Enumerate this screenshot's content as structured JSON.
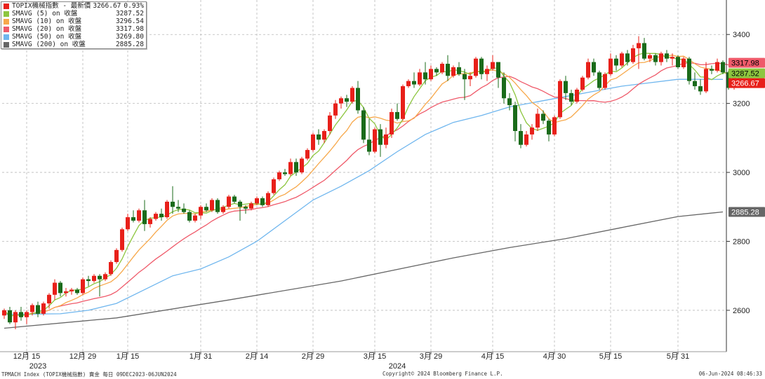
{
  "legend": [
    {
      "name": "TOPIX機械指數 - 最新價",
      "value": "3266.67",
      "change": "0.93%",
      "color": "#e8201a"
    },
    {
      "name": "SMAVG (5)  on 收盤",
      "value": "3287.52",
      "color": "#8dc63f"
    },
    {
      "name": "SMAVG (10)  on 收盤",
      "value": "3296.54",
      "color": "#f7a84a"
    },
    {
      "name": "SMAVG (20)  on 收盤",
      "value": "3317.98",
      "color": "#ef5a6a"
    },
    {
      "name": "SMAVG (50)  on 收盤",
      "value": "3269.80",
      "color": "#6fb6ee"
    },
    {
      "name": "SMAVG (200)  on 收盤",
      "value": "2885.28",
      "color": "#666666"
    }
  ],
  "footer": {
    "left": "TPMACH Index (TOPIX機械指數) 賣金  每日 09DEC2023-06JUN2024",
    "center": "Copyright© 2024 Bloomberg Finance L.P.",
    "right": "06-Jun-2024 08:46:33"
  },
  "chart_data": {
    "type": "candlestick",
    "y_axis": {
      "side": "right",
      "ticks": [
        2600,
        2800,
        3000,
        3200,
        3400
      ],
      "range": [
        2480,
        3500
      ]
    },
    "x_axis": {
      "ticks": [
        {
          "label": "12月 15",
          "index": 4
        },
        {
          "label": "12月 29",
          "index": 14
        },
        {
          "label": "1月 15",
          "index": 22
        },
        {
          "label": "1月 31",
          "index": 35
        },
        {
          "label": "2月 14",
          "index": 45
        },
        {
          "label": "2月 29",
          "index": 55
        },
        {
          "label": "3月 15",
          "index": 66
        },
        {
          "label": "3月 29",
          "index": 76
        },
        {
          "label": "4月 15",
          "index": 87
        },
        {
          "label": "4月 30",
          "index": 98
        },
        {
          "label": "5月 15",
          "index": 108
        },
        {
          "label": "5月 31",
          "index": 120
        }
      ],
      "year_labels": [
        {
          "label": "2023",
          "index": 6
        },
        {
          "label": "2024",
          "index": 70
        }
      ]
    },
    "grid": true,
    "colors": {
      "up": "#e8201a",
      "down": "#1a6b1a"
    },
    "candles": [
      [
        2585,
        2605,
        2575,
        2600
      ],
      [
        2600,
        2610,
        2560,
        2565
      ],
      [
        2565,
        2600,
        2545,
        2595
      ],
      [
        2595,
        2610,
        2570,
        2580
      ],
      [
        2580,
        2600,
        2560,
        2595
      ],
      [
        2595,
        2620,
        2585,
        2615
      ],
      [
        2615,
        2625,
        2580,
        2590
      ],
      [
        2590,
        2625,
        2585,
        2620
      ],
      [
        2620,
        2650,
        2605,
        2645
      ],
      [
        2645,
        2690,
        2630,
        2680
      ],
      [
        2680,
        2685,
        2640,
        2650
      ],
      [
        2650,
        2665,
        2640,
        2655
      ],
      [
        2655,
        2665,
        2645,
        2660
      ],
      [
        2660,
        2665,
        2645,
        2650
      ],
      [
        2650,
        2695,
        2645,
        2690
      ],
      [
        2690,
        2700,
        2670,
        2685
      ],
      [
        2685,
        2705,
        2680,
        2700
      ],
      [
        2700,
        2705,
        2640,
        2690
      ],
      [
        2690,
        2710,
        2685,
        2705
      ],
      [
        2705,
        2745,
        2700,
        2740
      ],
      [
        2740,
        2780,
        2735,
        2775
      ],
      [
        2775,
        2840,
        2770,
        2835
      ],
      [
        2835,
        2880,
        2830,
        2870
      ],
      [
        2870,
        2890,
        2855,
        2860
      ],
      [
        2860,
        2895,
        2855,
        2890
      ],
      [
        2890,
        2920,
        2830,
        2850
      ],
      [
        2850,
        2870,
        2840,
        2865
      ],
      [
        2865,
        2885,
        2860,
        2880
      ],
      [
        2880,
        2895,
        2860,
        2870
      ],
      [
        2870,
        2920,
        2865,
        2915
      ],
      [
        2915,
        2960,
        2880,
        2900
      ],
      [
        2900,
        2920,
        2885,
        2895
      ],
      [
        2895,
        2910,
        2880,
        2885
      ],
      [
        2885,
        2890,
        2855,
        2860
      ],
      [
        2860,
        2880,
        2855,
        2875
      ],
      [
        2875,
        2905,
        2865,
        2900
      ],
      [
        2900,
        2910,
        2885,
        2890
      ],
      [
        2890,
        2925,
        2885,
        2920
      ],
      [
        2920,
        2925,
        2880,
        2885
      ],
      [
        2885,
        2905,
        2880,
        2900
      ],
      [
        2900,
        2935,
        2895,
        2930
      ],
      [
        2930,
        2935,
        2910,
        2915
      ],
      [
        2915,
        2920,
        2860,
        2900
      ],
      [
        2900,
        2905,
        2880,
        2895
      ],
      [
        2895,
        2915,
        2890,
        2910
      ],
      [
        2910,
        2930,
        2905,
        2925
      ],
      [
        2925,
        2930,
        2900,
        2905
      ],
      [
        2905,
        2945,
        2900,
        2940
      ],
      [
        2940,
        2985,
        2935,
        2980
      ],
      [
        2980,
        3005,
        2975,
        3000
      ],
      [
        3000,
        3010,
        2990,
        2995
      ],
      [
        2995,
        3040,
        2990,
        3030
      ],
      [
        3030,
        3040,
        2990,
        3000
      ],
      [
        3000,
        3045,
        2995,
        3040
      ],
      [
        3040,
        3070,
        3035,
        3065
      ],
      [
        3065,
        3115,
        3060,
        3110
      ],
      [
        3110,
        3125,
        3080,
        3095
      ],
      [
        3095,
        3125,
        3085,
        3120
      ],
      [
        3120,
        3175,
        3110,
        3165
      ],
      [
        3165,
        3210,
        3155,
        3200
      ],
      [
        3200,
        3220,
        3185,
        3215
      ],
      [
        3215,
        3225,
        3190,
        3205
      ],
      [
        3205,
        3250,
        3200,
        3245
      ],
      [
        3245,
        3265,
        3170,
        3180
      ],
      [
        3180,
        3190,
        3085,
        3095
      ],
      [
        3095,
        3155,
        3050,
        3060
      ],
      [
        3060,
        3130,
        3055,
        3125
      ],
      [
        3125,
        3140,
        3045,
        3080
      ],
      [
        3080,
        3130,
        3070,
        3110
      ],
      [
        3110,
        3185,
        3100,
        3175
      ],
      [
        3175,
        3200,
        3150,
        3155
      ],
      [
        3155,
        3255,
        3150,
        3250
      ],
      [
        3250,
        3270,
        3245,
        3265
      ],
      [
        3265,
        3290,
        3245,
        3255
      ],
      [
        3255,
        3300,
        3250,
        3290
      ],
      [
        3290,
        3320,
        3255,
        3270
      ],
      [
        3270,
        3310,
        3265,
        3300
      ],
      [
        3300,
        3305,
        3280,
        3290
      ],
      [
        3290,
        3320,
        3285,
        3315
      ],
      [
        3315,
        3340,
        3265,
        3280
      ],
      [
        3280,
        3310,
        3275,
        3305
      ],
      [
        3305,
        3320,
        3280,
        3285
      ],
      [
        3285,
        3300,
        3210,
        3270
      ],
      [
        3270,
        3290,
        3250,
        3280
      ],
      [
        3280,
        3335,
        3275,
        3330
      ],
      [
        3330,
        3335,
        3270,
        3285
      ],
      [
        3285,
        3310,
        3265,
        3300
      ],
      [
        3300,
        3340,
        3295,
        3320
      ],
      [
        3320,
        3315,
        3245,
        3275
      ],
      [
        3275,
        3290,
        3200,
        3215
      ],
      [
        3215,
        3230,
        3180,
        3195
      ],
      [
        3195,
        3205,
        3090,
        3120
      ],
      [
        3120,
        3140,
        3070,
        3080
      ],
      [
        3080,
        3120,
        3075,
        3110
      ],
      [
        3110,
        3140,
        3095,
        3130
      ],
      [
        3130,
        3185,
        3120,
        3170
      ],
      [
        3170,
        3180,
        3140,
        3150
      ],
      [
        3150,
        3155,
        3090,
        3110
      ],
      [
        3110,
        3165,
        3105,
        3160
      ],
      [
        3160,
        3270,
        3155,
        3265
      ],
      [
        3265,
        3280,
        3210,
        3230
      ],
      [
        3230,
        3240,
        3195,
        3205
      ],
      [
        3205,
        3245,
        3200,
        3240
      ],
      [
        3240,
        3280,
        3235,
        3275
      ],
      [
        3275,
        3330,
        3270,
        3320
      ],
      [
        3320,
        3330,
        3280,
        3290
      ],
      [
        3290,
        3295,
        3240,
        3245
      ],
      [
        3245,
        3290,
        3240,
        3285
      ],
      [
        3285,
        3345,
        3280,
        3330
      ],
      [
        3330,
        3340,
        3295,
        3310
      ],
      [
        3310,
        3350,
        3305,
        3345
      ],
      [
        3345,
        3355,
        3310,
        3320
      ],
      [
        3320,
        3370,
        3315,
        3360
      ],
      [
        3360,
        3395,
        3300,
        3375
      ],
      [
        3375,
        3390,
        3325,
        3330
      ],
      [
        3330,
        3345,
        3320,
        3340
      ],
      [
        3340,
        3345,
        3310,
        3320
      ],
      [
        3320,
        3350,
        3310,
        3345
      ],
      [
        3345,
        3355,
        3320,
        3330
      ],
      [
        3330,
        3345,
        3310,
        3335
      ],
      [
        3335,
        3340,
        3300,
        3305
      ],
      [
        3305,
        3335,
        3300,
        3330
      ],
      [
        3330,
        3335,
        3255,
        3265
      ],
      [
        3265,
        3290,
        3240,
        3250
      ],
      [
        3250,
        3270,
        3225,
        3235
      ],
      [
        3235,
        3320,
        3230,
        3300
      ],
      [
        3300,
        3310,
        3285,
        3295
      ],
      [
        3295,
        3330,
        3290,
        3320
      ],
      [
        3320,
        3325,
        3285,
        3290
      ],
      [
        3290,
        3295,
        3240,
        3245
      ],
      [
        3245,
        3285,
        3240,
        3280
      ],
      [
        3280,
        3285,
        3255,
        3267
      ]
    ],
    "ma_series": [
      {
        "name": "SMAVG (200)",
        "color": "#666666",
        "values": [
          [
            0,
            2548
          ],
          [
            20,
            2578
          ],
          [
            40,
            2630
          ],
          [
            60,
            2685
          ],
          [
            80,
            2752
          ],
          [
            90,
            2782
          ],
          [
            100,
            2808
          ],
          [
            110,
            2840
          ],
          [
            120,
            2872
          ],
          [
            128,
            2885.28
          ]
        ]
      },
      {
        "name": "SMAVG (50)",
        "color": "#6fb6ee",
        "values": [
          [
            0,
            2588
          ],
          [
            10,
            2590
          ],
          [
            15,
            2600
          ],
          [
            20,
            2620
          ],
          [
            25,
            2660
          ],
          [
            30,
            2700
          ],
          [
            35,
            2720
          ],
          [
            40,
            2755
          ],
          [
            45,
            2800
          ],
          [
            50,
            2860
          ],
          [
            55,
            2920
          ],
          [
            60,
            2960
          ],
          [
            65,
            3005
          ],
          [
            70,
            3060
          ],
          [
            75,
            3110
          ],
          [
            80,
            3145
          ],
          [
            85,
            3165
          ],
          [
            90,
            3190
          ],
          [
            95,
            3205
          ],
          [
            100,
            3220
          ],
          [
            105,
            3235
          ],
          [
            110,
            3250
          ],
          [
            115,
            3260
          ],
          [
            120,
            3270
          ],
          [
            128,
            3269.8
          ]
        ]
      }
    ],
    "price_labels": [
      {
        "value": "3317.98",
        "price": 3317.98,
        "bg": "#ef5a6a",
        "fg": "#000000"
      },
      {
        "value": "3287.52",
        "price": 3287.52,
        "bg": "#8dc63f",
        "fg": "#000000"
      },
      {
        "value": "3266.67",
        "price": 3266.67,
        "bg": "#e8201a",
        "fg": "#ffffff"
      },
      {
        "value": "2885.28",
        "price": 2885.28,
        "bg": "#666666",
        "fg": "#ffffff"
      }
    ]
  }
}
